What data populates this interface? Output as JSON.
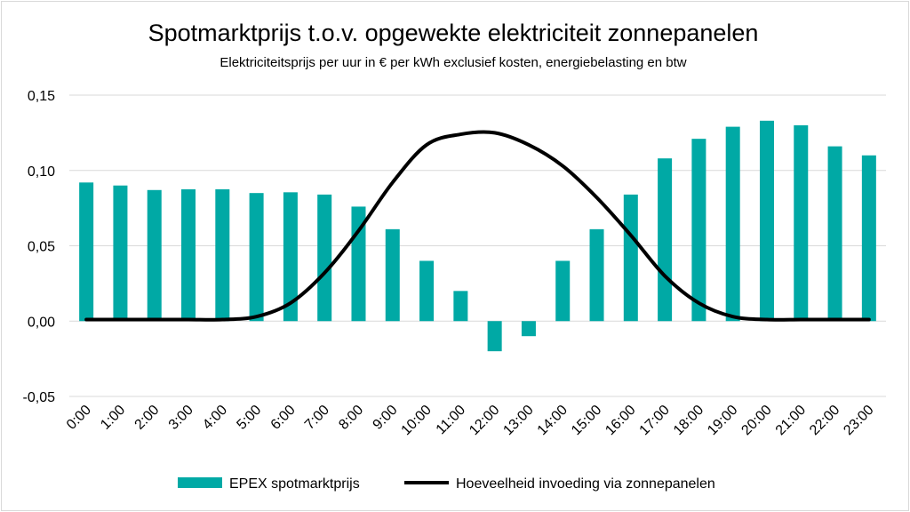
{
  "chart_data": {
    "type": "bar",
    "title": "Spotmarktprijs t.o.v. opgewekte elektriciteit zonnepanelen",
    "subtitle": "Elektriciteitsprijs per uur in € per kWh exclusief kosten, energiebelasting en btw",
    "xlabel": "",
    "ylabel": "",
    "ylim": [
      -0.05,
      0.15
    ],
    "yticks": [
      -0.05,
      0.0,
      0.05,
      0.1,
      0.15
    ],
    "ytick_labels": [
      "-0,05",
      "0,00",
      "0,05",
      "0,10",
      "0,15"
    ],
    "grid": true,
    "legend": "bottom",
    "categories": [
      "0:00",
      "1:00",
      "2:00",
      "3:00",
      "4:00",
      "5:00",
      "6:00",
      "7:00",
      "8:00",
      "9:00",
      "10:00",
      "11:00",
      "12:00",
      "13:00",
      "14:00",
      "15:00",
      "16:00",
      "17:00",
      "18:00",
      "19:00",
      "20:00",
      "21:00",
      "22:00",
      "23:00"
    ],
    "series": [
      {
        "name": "EPEX spotmarktprijs",
        "type": "bar",
        "color": "#00a9a5",
        "values": [
          0.092,
          0.09,
          0.087,
          0.0875,
          0.0875,
          0.085,
          0.0855,
          0.084,
          0.076,
          0.061,
          0.04,
          0.02,
          -0.02,
          -0.01,
          0.04,
          0.061,
          0.084,
          0.108,
          0.121,
          0.129,
          0.133,
          0.13,
          0.116,
          0.11
        ]
      },
      {
        "name": "Hoeveelheid invoeding via zonnepanelen",
        "type": "line",
        "color": "#000000",
        "values": [
          0.001,
          0.001,
          0.001,
          0.001,
          0.001,
          0.003,
          0.012,
          0.032,
          0.06,
          0.092,
          0.117,
          0.124,
          0.125,
          0.117,
          0.103,
          0.082,
          0.057,
          0.03,
          0.012,
          0.003,
          0.001,
          0.001,
          0.001,
          0.001
        ]
      }
    ]
  }
}
